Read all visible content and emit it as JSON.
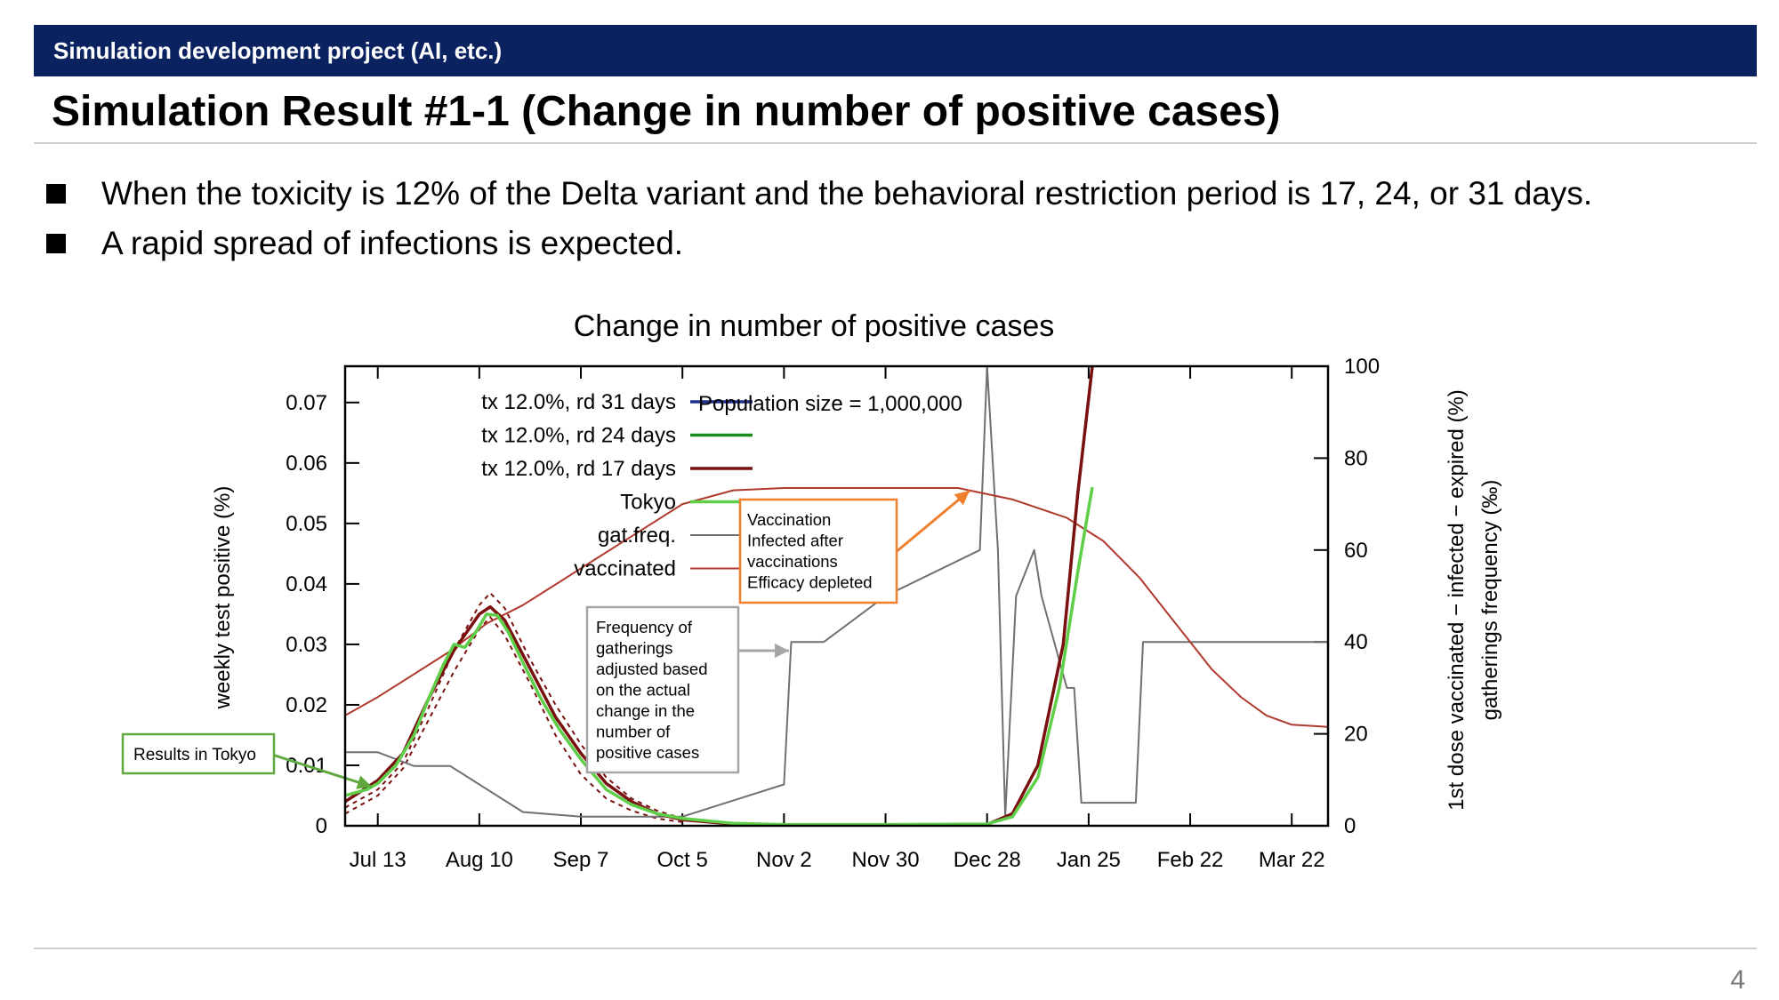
{
  "header": {
    "section": "Simulation development project (AI, etc.)"
  },
  "slide": {
    "title": "Simulation Result #1-1 (Change in number of positive cases)",
    "bullets": [
      "When the toxicity is 12% of the Delta variant and the behavioral restriction period is 17, 24, or 31 days.",
      "A rapid spread of infections is expected."
    ],
    "page_number": "4"
  },
  "chart_data": {
    "type": "line",
    "title": "Change in number of positive cases",
    "ylabel": "weekly test positive (%)",
    "y2label_line1": "1st dose vaccinated − infected − expired (%)",
    "y2label_line2": "gatherings frequency (‰)",
    "x_ticks": [
      "Jul 13",
      "Aug 10",
      "Sep 7",
      "Oct 5",
      "Nov 2",
      "Nov 30",
      "Dec 28",
      "Jan 25",
      "Feb 22",
      "Mar 22"
    ],
    "x_tick_days": [
      0,
      28,
      56,
      84,
      112,
      140,
      168,
      196,
      224,
      252
    ],
    "x_range_days": [
      -9,
      262
    ],
    "ylim": [
      0,
      0.076
    ],
    "y_ticks": [
      0,
      0.01,
      0.02,
      0.03,
      0.04,
      0.05,
      0.06,
      0.07
    ],
    "y_tick_labels": [
      "0",
      "0.01",
      "0.02",
      "0.03",
      "0.04",
      "0.05",
      "0.06",
      "0.07"
    ],
    "y2lim": [
      0,
      100
    ],
    "y2_ticks": [
      0,
      20,
      40,
      60,
      80,
      100
    ],
    "y2_tick_labels": [
      "0",
      "20",
      "40",
      "60",
      "80",
      "100"
    ],
    "population_label": "Population size = 1,000,000",
    "legend_position": "top-left",
    "series": [
      {
        "name": "tx 12.0%, rd 31 days",
        "axis": "y",
        "color": "#1f2f8a",
        "width": 3,
        "points": [
          [
            -9,
            0.004
          ],
          [
            0,
            0.0075
          ],
          [
            7,
            0.012
          ],
          [
            14,
            0.021
          ],
          [
            21,
            0.029
          ],
          [
            28,
            0.035
          ],
          [
            31,
            0.0362
          ],
          [
            35,
            0.034
          ],
          [
            42,
            0.026
          ],
          [
            49,
            0.018
          ],
          [
            56,
            0.012
          ],
          [
            63,
            0.007
          ],
          [
            70,
            0.004
          ],
          [
            77,
            0.002
          ],
          [
            84,
            0.001
          ],
          [
            98,
            0.0003
          ],
          [
            112,
            0.0001
          ],
          [
            140,
            0.0001
          ],
          [
            168,
            0.0002
          ],
          [
            175,
            0.002
          ],
          [
            182,
            0.01
          ],
          [
            189,
            0.03
          ],
          [
            193,
            0.055
          ],
          [
            197,
            0.076
          ]
        ]
      },
      {
        "name": "tx 12.0%, rd 24 days",
        "axis": "y",
        "color": "#1a8a1a",
        "width": 3,
        "points": [
          [
            -9,
            0.004
          ],
          [
            0,
            0.0075
          ],
          [
            7,
            0.012
          ],
          [
            14,
            0.021
          ],
          [
            21,
            0.029
          ],
          [
            28,
            0.035
          ],
          [
            31,
            0.0362
          ],
          [
            35,
            0.034
          ],
          [
            42,
            0.026
          ],
          [
            49,
            0.018
          ],
          [
            56,
            0.012
          ],
          [
            63,
            0.007
          ],
          [
            70,
            0.004
          ],
          [
            77,
            0.002
          ],
          [
            84,
            0.001
          ],
          [
            98,
            0.0003
          ],
          [
            112,
            0.0001
          ],
          [
            140,
            0.0001
          ],
          [
            168,
            0.0002
          ],
          [
            175,
            0.002
          ],
          [
            182,
            0.01
          ],
          [
            189,
            0.03
          ],
          [
            193,
            0.055
          ],
          [
            197,
            0.076
          ]
        ]
      },
      {
        "name": "tx 12.0%, rd 17 days",
        "axis": "y",
        "color": "#7a1010",
        "width": 3.5,
        "points": [
          [
            -9,
            0.004
          ],
          [
            0,
            0.0075
          ],
          [
            7,
            0.012
          ],
          [
            14,
            0.021
          ],
          [
            21,
            0.029
          ],
          [
            28,
            0.035
          ],
          [
            31,
            0.0362
          ],
          [
            35,
            0.034
          ],
          [
            42,
            0.026
          ],
          [
            49,
            0.018
          ],
          [
            56,
            0.012
          ],
          [
            63,
            0.007
          ],
          [
            70,
            0.004
          ],
          [
            77,
            0.002
          ],
          [
            84,
            0.001
          ],
          [
            98,
            0.0003
          ],
          [
            112,
            0.0001
          ],
          [
            140,
            0.0001
          ],
          [
            168,
            0.0002
          ],
          [
            175,
            0.002
          ],
          [
            182,
            0.01
          ],
          [
            189,
            0.03
          ],
          [
            193,
            0.055
          ],
          [
            197,
            0.076
          ]
        ]
      },
      {
        "name": "Tokyo",
        "axis": "y",
        "color": "#5fcf4a",
        "width": 3.5,
        "points": [
          [
            -9,
            0.005
          ],
          [
            -3,
            0.006
          ],
          [
            0,
            0.007
          ],
          [
            5,
            0.01
          ],
          [
            10,
            0.015
          ],
          [
            14,
            0.021
          ],
          [
            18,
            0.0265
          ],
          [
            21,
            0.03
          ],
          [
            24,
            0.0295
          ],
          [
            27,
            0.032
          ],
          [
            30,
            0.035
          ],
          [
            33,
            0.0348
          ],
          [
            36,
            0.032
          ],
          [
            40,
            0.027
          ],
          [
            45,
            0.021
          ],
          [
            50,
            0.016
          ],
          [
            56,
            0.011
          ],
          [
            63,
            0.006
          ],
          [
            70,
            0.0035
          ],
          [
            77,
            0.002
          ],
          [
            84,
            0.0012
          ],
          [
            98,
            0.0004
          ],
          [
            112,
            0.0002
          ],
          [
            140,
            0.0002
          ],
          [
            168,
            0.0003
          ],
          [
            175,
            0.0015
          ],
          [
            182,
            0.008
          ],
          [
            188,
            0.023
          ],
          [
            193,
            0.042
          ],
          [
            197,
            0.056
          ]
        ]
      },
      {
        "name": "gat.freq.",
        "axis": "y2",
        "color": "#707070",
        "width": 2,
        "points": [
          [
            -9,
            16
          ],
          [
            0,
            16
          ],
          [
            10,
            13
          ],
          [
            20,
            13
          ],
          [
            40,
            3
          ],
          [
            56,
            2
          ],
          [
            84,
            2
          ],
          [
            112,
            9
          ],
          [
            114,
            40
          ],
          [
            116,
            40
          ],
          [
            123,
            40
          ],
          [
            140,
            50
          ],
          [
            166,
            60
          ],
          [
            168,
            100
          ],
          [
            171,
            60
          ],
          [
            173,
            2
          ],
          [
            176,
            50
          ],
          [
            181,
            60
          ],
          [
            183,
            50
          ],
          [
            190,
            30
          ],
          [
            192,
            30
          ],
          [
            194,
            5
          ],
          [
            209,
            5
          ],
          [
            211,
            40
          ],
          [
            262,
            40
          ]
        ]
      },
      {
        "name": "vaccinated",
        "axis": "y2",
        "color": "#b03a2e",
        "width": 2,
        "points": [
          [
            -9,
            24
          ],
          [
            0,
            28
          ],
          [
            10,
            33
          ],
          [
            20,
            38
          ],
          [
            30,
            44
          ],
          [
            40,
            48
          ],
          [
            50,
            53
          ],
          [
            60,
            58
          ],
          [
            70,
            63
          ],
          [
            84,
            70
          ],
          [
            98,
            73
          ],
          [
            112,
            73.5
          ],
          [
            140,
            73.5
          ],
          [
            160,
            73.5
          ],
          [
            175,
            71
          ],
          [
            190,
            67
          ],
          [
            200,
            62
          ],
          [
            210,
            54
          ],
          [
            218,
            46
          ],
          [
            224,
            40
          ],
          [
            230,
            34
          ],
          [
            238,
            28
          ],
          [
            245,
            24
          ],
          [
            252,
            22
          ],
          [
            262,
            21.5
          ]
        ]
      }
    ],
    "ensemble_band": {
      "color": "#7a1010",
      "upper": [
        [
          -9,
          0.003
        ],
        [
          0,
          0.006
        ],
        [
          7,
          0.0105
        ],
        [
          14,
          0.0195
        ],
        [
          21,
          0.029
        ],
        [
          28,
          0.0365
        ],
        [
          31,
          0.0385
        ],
        [
          35,
          0.036
        ],
        [
          42,
          0.0275
        ],
        [
          49,
          0.02
        ],
        [
          56,
          0.0135
        ],
        [
          63,
          0.008
        ],
        [
          70,
          0.0045
        ],
        [
          77,
          0.0025
        ],
        [
          84,
          0.0012
        ]
      ],
      "lower": [
        [
          -9,
          0.002
        ],
        [
          0,
          0.005
        ],
        [
          7,
          0.0095
        ],
        [
          14,
          0.0175
        ],
        [
          21,
          0.0255
        ],
        [
          28,
          0.0325
        ],
        [
          31,
          0.0345
        ],
        [
          35,
          0.0315
        ],
        [
          42,
          0.0235
        ],
        [
          49,
          0.015
        ],
        [
          56,
          0.0085
        ],
        [
          63,
          0.0045
        ],
        [
          70,
          0.0025
        ],
        [
          77,
          0.0012
        ],
        [
          84,
          0.0006
        ]
      ]
    },
    "annotations": [
      {
        "text_lines": [
          "Results in Tokyo"
        ],
        "color": "#5fa83e"
      },
      {
        "text_lines": [
          "Frequency of",
          "gatherings",
          "adjusted based",
          "on the actual",
          "change in the",
          "number of",
          "positive cases"
        ],
        "color": "#a6a6a6"
      },
      {
        "text_lines": [
          "Vaccination",
          "Infected after",
          "vaccinations",
          "Efficacy depleted"
        ],
        "color": "#ef7f2c"
      }
    ]
  }
}
